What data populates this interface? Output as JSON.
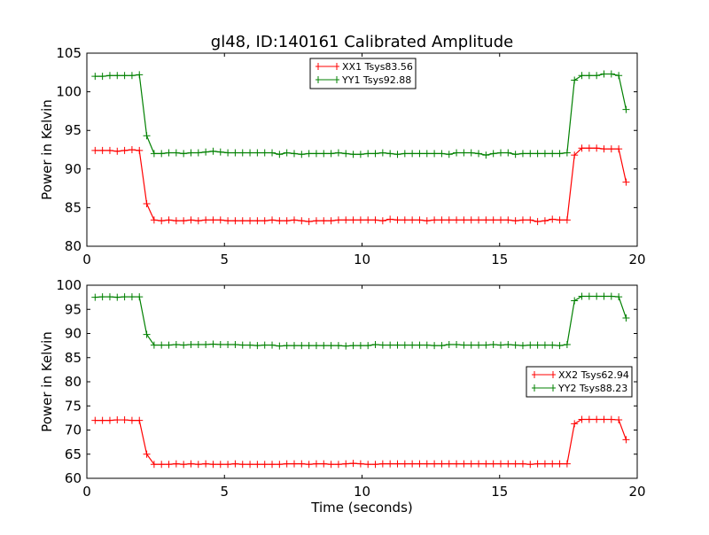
{
  "chart_data": [
    {
      "type": "line",
      "title": "gl48, ID:140161 Calibrated Amplitude",
      "xlabel": "",
      "ylabel": "Power in Kelvin",
      "xlim": [
        0,
        20
      ],
      "ylim": [
        80,
        105
      ],
      "xticks": [
        "0",
        "5",
        "10",
        "15",
        "20"
      ],
      "xtick_values": [
        0,
        5,
        10,
        15,
        20
      ],
      "yticks": [
        "80",
        "85",
        "90",
        "95",
        "100",
        "105"
      ],
      "ytick_values": [
        80,
        85,
        90,
        95,
        100,
        105
      ],
      "legend_position": "upper-center",
      "x_start": 0.3,
      "x_step": 0.268,
      "series": [
        {
          "name": "XX1 Tsys83.56",
          "color": "#ff0000",
          "values": [
            92.4,
            92.4,
            92.4,
            92.3,
            92.4,
            92.5,
            92.4,
            85.5,
            83.4,
            83.3,
            83.4,
            83.3,
            83.3,
            83.4,
            83.3,
            83.4,
            83.4,
            83.4,
            83.3,
            83.3,
            83.3,
            83.3,
            83.3,
            83.3,
            83.4,
            83.3,
            83.3,
            83.4,
            83.3,
            83.2,
            83.3,
            83.3,
            83.3,
            83.4,
            83.4,
            83.4,
            83.4,
            83.4,
            83.4,
            83.3,
            83.5,
            83.4,
            83.4,
            83.4,
            83.4,
            83.3,
            83.4,
            83.4,
            83.4,
            83.4,
            83.4,
            83.4,
            83.4,
            83.4,
            83.4,
            83.4,
            83.4,
            83.3,
            83.4,
            83.4,
            83.2,
            83.3,
            83.5,
            83.4,
            83.4,
            91.8,
            92.7,
            92.7,
            92.7,
            92.6,
            92.6,
            92.6,
            88.3
          ]
        },
        {
          "name": "YY1 Tsys92.88",
          "color": "#008000",
          "values": [
            102.0,
            102.0,
            102.1,
            102.1,
            102.1,
            102.1,
            102.2,
            94.3,
            92.0,
            92.0,
            92.1,
            92.1,
            92.0,
            92.1,
            92.1,
            92.2,
            92.3,
            92.2,
            92.1,
            92.1,
            92.1,
            92.1,
            92.1,
            92.1,
            92.1,
            91.9,
            92.1,
            92.0,
            91.9,
            92.0,
            92.0,
            92.0,
            92.0,
            92.1,
            92.0,
            91.9,
            91.9,
            92.0,
            92.0,
            92.1,
            92.0,
            91.9,
            92.0,
            92.0,
            92.0,
            92.0,
            92.0,
            92.0,
            91.9,
            92.1,
            92.1,
            92.1,
            92.0,
            91.8,
            92.0,
            92.1,
            92.1,
            91.9,
            92.0,
            92.0,
            92.0,
            92.0,
            92.0,
            92.0,
            92.1,
            101.5,
            102.1,
            102.1,
            102.1,
            102.3,
            102.3,
            102.1,
            97.7
          ]
        }
      ]
    },
    {
      "type": "line",
      "title": "",
      "xlabel": "Time (seconds)",
      "ylabel": "Power in Kelvin",
      "xlim": [
        0,
        20
      ],
      "ylim": [
        60,
        100
      ],
      "xticks": [
        "0",
        "5",
        "10",
        "15",
        "20"
      ],
      "xtick_values": [
        0,
        5,
        10,
        15,
        20
      ],
      "yticks": [
        "60",
        "65",
        "70",
        "75",
        "80",
        "85",
        "90",
        "95",
        "100"
      ],
      "ytick_values": [
        60,
        65,
        70,
        75,
        80,
        85,
        90,
        95,
        100
      ],
      "legend_position": "center-right",
      "x_start": 0.3,
      "x_step": 0.268,
      "series": [
        {
          "name": "XX2 Tsys62.94",
          "color": "#ff0000",
          "values": [
            72.0,
            72.0,
            72.0,
            72.1,
            72.1,
            72.0,
            72.0,
            65.0,
            62.9,
            62.9,
            62.9,
            63.0,
            62.9,
            63.0,
            62.9,
            63.0,
            62.9,
            62.9,
            62.9,
            63.0,
            62.9,
            62.9,
            62.9,
            62.9,
            62.9,
            62.9,
            63.0,
            63.0,
            63.0,
            62.9,
            63.0,
            63.0,
            62.9,
            62.9,
            63.0,
            63.1,
            63.0,
            62.9,
            62.9,
            63.0,
            63.0,
            63.0,
            63.0,
            63.0,
            63.0,
            63.0,
            63.0,
            63.0,
            63.0,
            63.0,
            63.0,
            63.0,
            63.0,
            63.0,
            63.0,
            63.0,
            63.0,
            63.0,
            63.0,
            62.9,
            63.0,
            63.0,
            63.0,
            63.0,
            63.0,
            71.3,
            72.2,
            72.2,
            72.2,
            72.2,
            72.2,
            72.1,
            68.0
          ]
        },
        {
          "name": "YY2 Tsys88.23",
          "color": "#008000",
          "values": [
            97.5,
            97.6,
            97.6,
            97.5,
            97.6,
            97.6,
            97.6,
            89.8,
            87.6,
            87.6,
            87.6,
            87.7,
            87.6,
            87.7,
            87.7,
            87.7,
            87.8,
            87.7,
            87.7,
            87.7,
            87.6,
            87.6,
            87.5,
            87.6,
            87.6,
            87.4,
            87.5,
            87.5,
            87.5,
            87.5,
            87.5,
            87.5,
            87.5,
            87.5,
            87.4,
            87.5,
            87.5,
            87.5,
            87.7,
            87.6,
            87.6,
            87.6,
            87.6,
            87.6,
            87.6,
            87.6,
            87.5,
            87.5,
            87.7,
            87.7,
            87.6,
            87.6,
            87.6,
            87.6,
            87.7,
            87.6,
            87.7,
            87.6,
            87.5,
            87.6,
            87.6,
            87.6,
            87.6,
            87.5,
            87.7,
            96.8,
            97.7,
            97.7,
            97.7,
            97.7,
            97.7,
            97.6,
            93.2
          ]
        }
      ]
    }
  ]
}
